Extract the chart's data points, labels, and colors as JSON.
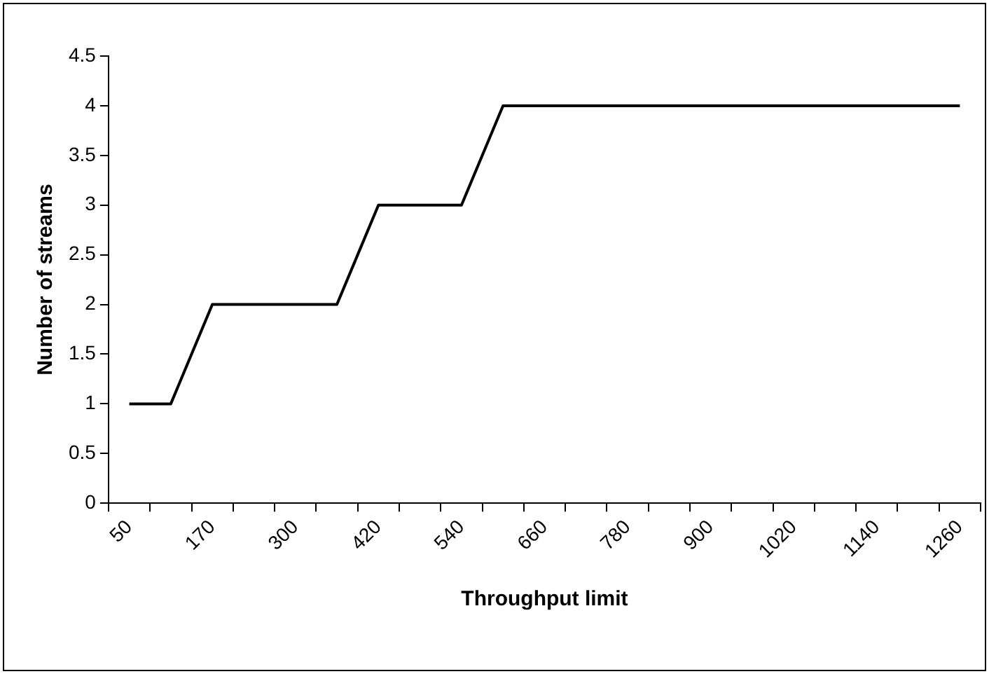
{
  "chart_data": {
    "type": "line",
    "xlabel": "Throughput limit",
    "ylabel": "Number of streams",
    "categories": [
      "50",
      null,
      "170",
      null,
      "300",
      null,
      "420",
      null,
      "540",
      null,
      "660",
      null,
      "780",
      null,
      "900",
      null,
      "1020",
      null,
      "1140",
      null,
      "1260"
    ],
    "series": [
      {
        "color": "#000000",
        "values": [
          1,
          1,
          2,
          2,
          2,
          2,
          3,
          3,
          3,
          4,
          4,
          4,
          4,
          4,
          4,
          4,
          4,
          4,
          4,
          4,
          4
        ]
      }
    ],
    "ylim": [
      0,
      4.5
    ],
    "yticks": [
      0,
      0.5,
      1,
      1.5,
      2,
      2.5,
      3,
      3.5,
      4,
      4.5
    ],
    "grid": false,
    "legend": false,
    "marker": "none",
    "line_style": "solid"
  }
}
